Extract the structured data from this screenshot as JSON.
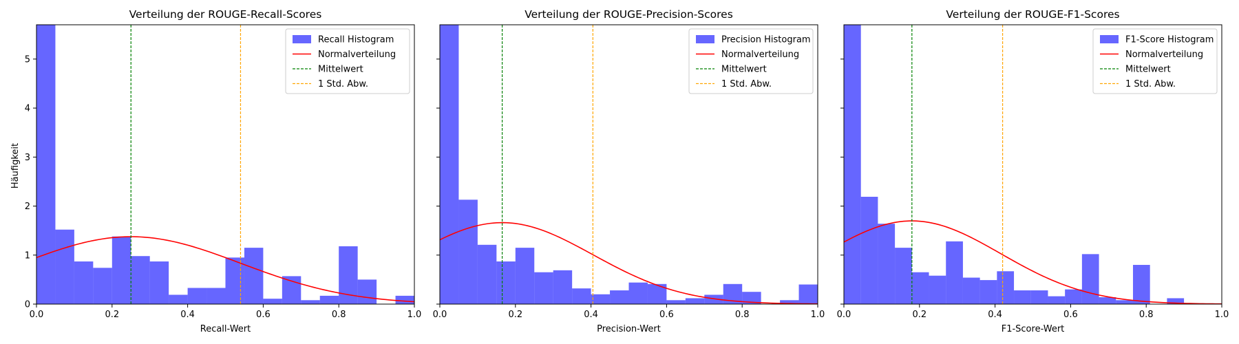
{
  "figure": {
    "ylabel": "Häufigkeit"
  },
  "colors": {
    "histogram": "#0000ff",
    "normal": "#ff0000",
    "mean": "#008000",
    "std": "#ffa500"
  },
  "chart_data": [
    {
      "type": "bar",
      "title": "Verteilung der ROUGE-Recall-Scores",
      "xlabel": "Recall-Wert",
      "ylabel": "Häufigkeit",
      "xlim": [
        0,
        1
      ],
      "ylim": [
        0,
        5.7
      ],
      "xticks": [
        "0.0",
        "0.2",
        "0.4",
        "0.6",
        "0.8",
        "1.0"
      ],
      "yticks": [
        "0",
        "1",
        "2",
        "3",
        "4",
        "5"
      ],
      "bin_width": 0.05,
      "bin_starts": [
        0.0,
        0.05,
        0.1,
        0.15,
        0.2,
        0.25,
        0.3,
        0.35,
        0.4,
        0.45,
        0.5,
        0.55,
        0.6,
        0.65,
        0.7,
        0.75,
        0.8,
        0.85,
        0.9,
        0.95
      ],
      "values": [
        5.7,
        1.52,
        0.87,
        0.74,
        1.38,
        0.98,
        0.87,
        0.19,
        0.33,
        0.33,
        0.95,
        1.15,
        0.11,
        0.57,
        0.08,
        0.17,
        1.18,
        0.5,
        0.0,
        0.17
      ],
      "mean": 0.25,
      "std": 0.29,
      "std_line": 0.54,
      "legend": {
        "position": "top-right",
        "items": [
          "Recall Histogram",
          "Normalverteilung",
          "Mittelwert",
          "1 Std. Abw."
        ]
      }
    },
    {
      "type": "bar",
      "title": "Verteilung der ROUGE-Precision-Scores",
      "xlabel": "Precision-Wert",
      "ylabel": "",
      "xlim": [
        0,
        1
      ],
      "ylim": [
        0,
        5.7
      ],
      "xticks": [
        "0.0",
        "0.2",
        "0.4",
        "0.6",
        "0.8",
        "1.0"
      ],
      "yticks": [
        "0",
        "1",
        "2",
        "3",
        "4",
        "5"
      ],
      "bin_width": 0.05,
      "bin_starts": [
        0.0,
        0.05,
        0.1,
        0.15,
        0.2,
        0.25,
        0.3,
        0.35,
        0.4,
        0.45,
        0.5,
        0.55,
        0.6,
        0.65,
        0.7,
        0.75,
        0.8,
        0.85,
        0.9,
        0.95
      ],
      "values": [
        5.7,
        2.13,
        1.21,
        0.87,
        1.15,
        0.65,
        0.69,
        0.32,
        0.2,
        0.28,
        0.44,
        0.41,
        0.08,
        0.12,
        0.19,
        0.41,
        0.25,
        0.0,
        0.08,
        0.4
      ],
      "mean": 0.165,
      "std": 0.24,
      "std_line": 0.405,
      "legend": {
        "position": "top-right",
        "items": [
          "Precision Histogram",
          "Normalverteilung",
          "Mittelwert",
          "1 Std. Abw."
        ]
      }
    },
    {
      "type": "bar",
      "title": "Verteilung der ROUGE-F1-Scores",
      "xlabel": "F1-Score-Wert",
      "ylabel": "",
      "xlim": [
        0,
        1
      ],
      "ylim": [
        0,
        5.7
      ],
      "xticks": [
        "0.0",
        "0.2",
        "0.4",
        "0.6",
        "0.8",
        "1.0"
      ],
      "yticks": [
        "0",
        "1",
        "2",
        "3",
        "4",
        "5"
      ],
      "bin_width": 0.045,
      "bin_starts": [
        0.0,
        0.045,
        0.09,
        0.135,
        0.18,
        0.225,
        0.27,
        0.315,
        0.36,
        0.405,
        0.45,
        0.495,
        0.54,
        0.585,
        0.63,
        0.675,
        0.72,
        0.765,
        0.81,
        0.855
      ],
      "values": [
        5.7,
        2.19,
        1.64,
        1.15,
        0.65,
        0.58,
        1.28,
        0.54,
        0.49,
        0.67,
        0.28,
        0.28,
        0.16,
        0.3,
        1.02,
        0.14,
        0.08,
        0.8,
        0.0,
        0.12
      ],
      "mean": 0.18,
      "std": 0.235,
      "std_line": 0.42,
      "legend": {
        "position": "top-right",
        "items": [
          "F1-Score Histogram",
          "Normalverteilung",
          "Mittelwert",
          "1 Std. Abw."
        ]
      }
    }
  ]
}
